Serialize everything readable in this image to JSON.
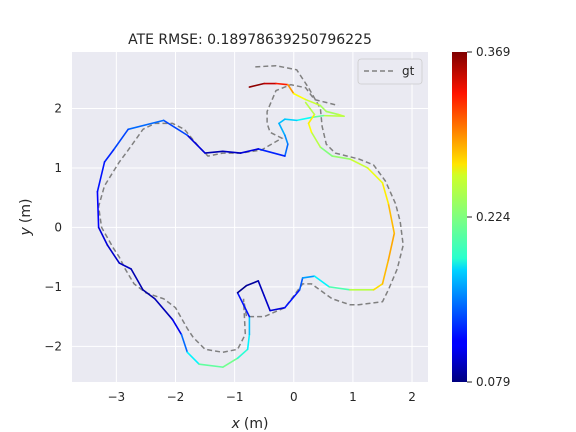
{
  "chart_data": {
    "type": "line",
    "title": "ATE RMSE: 0.18978639250796225",
    "xlabel_var": "x",
    "xlabel_unit": "(m)",
    "ylabel_var": "y",
    "ylabel_unit": "(m)",
    "xlim": [
      -3.75,
      2.27
    ],
    "ylim": [
      -2.6,
      2.95
    ],
    "xticks": [
      -3,
      -2,
      -1,
      0,
      1,
      2
    ],
    "yticks": [
      -2,
      -1,
      0,
      1,
      2
    ],
    "grid": true,
    "legend": {
      "position": "top-right",
      "entries": [
        "gt"
      ]
    },
    "colorbar": {
      "min": 0.079,
      "max": 0.369,
      "ticks": [
        "0.369",
        "0.224",
        "0.079"
      ],
      "colormap": "jet"
    },
    "gt": {
      "name": "gt",
      "style": "dashed",
      "color": "#808080",
      "points": [
        [
          -0.65,
          2.7
        ],
        [
          -0.3,
          2.72
        ],
        [
          0.05,
          2.65
        ],
        [
          0.25,
          2.35
        ],
        [
          0.45,
          2.0
        ],
        [
          0.48,
          1.7
        ],
        [
          0.55,
          1.4
        ],
        [
          0.7,
          1.25
        ],
        [
          1.1,
          1.15
        ],
        [
          1.35,
          1.05
        ],
        [
          1.55,
          0.78
        ],
        [
          1.72,
          0.4
        ],
        [
          1.8,
          0.1
        ],
        [
          1.85,
          -0.3
        ],
        [
          1.75,
          -0.7
        ],
        [
          1.6,
          -1.05
        ],
        [
          1.5,
          -1.25
        ],
        [
          1.1,
          -1.3
        ],
        [
          0.95,
          -1.3
        ],
        [
          0.65,
          -1.2
        ],
        [
          0.3,
          -0.95
        ],
        [
          0.15,
          -0.95
        ],
        [
          -0.15,
          -1.35
        ],
        [
          -0.5,
          -1.5
        ],
        [
          -0.8,
          -1.5
        ],
        [
          -0.85,
          -1.2
        ],
        [
          -0.82,
          -1.8
        ],
        [
          -0.95,
          -2.05
        ],
        [
          -1.2,
          -2.1
        ],
        [
          -1.5,
          -2.05
        ],
        [
          -1.7,
          -1.85
        ],
        [
          -1.8,
          -1.7
        ],
        [
          -2.0,
          -1.35
        ],
        [
          -2.2,
          -1.2
        ],
        [
          -2.5,
          -1.1
        ],
        [
          -2.7,
          -0.95
        ],
        [
          -2.85,
          -0.7
        ],
        [
          -2.95,
          -0.5
        ],
        [
          -3.05,
          -0.35
        ],
        [
          -3.25,
          0.0
        ],
        [
          -3.3,
          0.35
        ],
        [
          -3.2,
          0.7
        ],
        [
          -2.95,
          1.1
        ],
        [
          -2.8,
          1.3
        ],
        [
          -2.55,
          1.65
        ],
        [
          -2.35,
          1.75
        ],
        [
          -2.05,
          1.75
        ],
        [
          -1.85,
          1.65
        ],
        [
          -1.6,
          1.35
        ],
        [
          -1.45,
          1.2
        ],
        [
          -1.2,
          1.25
        ],
        [
          -0.9,
          1.25
        ],
        [
          -0.55,
          1.3
        ],
        [
          -0.2,
          1.5
        ],
        [
          -0.4,
          1.6
        ],
        [
          -0.45,
          1.75
        ],
        [
          -0.45,
          1.95
        ],
        [
          -0.3,
          2.3
        ],
        [
          -0.05,
          2.4
        ],
        [
          0.2,
          2.35
        ],
        [
          0.35,
          2.15
        ],
        [
          0.55,
          2.1
        ],
        [
          0.75,
          2.05
        ]
      ]
    },
    "est": {
      "points": [
        [
          -0.75,
          2.36
        ],
        [
          -0.5,
          2.42
        ],
        [
          -0.3,
          2.42
        ],
        [
          -0.1,
          2.4
        ],
        [
          0.0,
          2.25
        ],
        [
          0.2,
          2.15
        ],
        [
          0.45,
          2.05
        ],
        [
          0.55,
          1.95
        ],
        [
          0.75,
          1.9
        ],
        [
          0.85,
          1.87
        ],
        [
          0.5,
          1.88
        ],
        [
          0.3,
          1.85
        ],
        [
          0.05,
          1.8
        ],
        [
          -0.15,
          1.82
        ],
        [
          -0.25,
          1.75
        ],
        [
          -0.15,
          1.55
        ],
        [
          -0.1,
          1.4
        ],
        [
          -0.15,
          1.2
        ],
        [
          -0.6,
          1.32
        ],
        [
          -0.9,
          1.25
        ],
        [
          -1.2,
          1.28
        ],
        [
          -1.5,
          1.25
        ],
        [
          -1.8,
          1.55
        ],
        [
          -2.2,
          1.8
        ],
        [
          -2.8,
          1.65
        ],
        [
          -3.05,
          1.3
        ],
        [
          -3.2,
          1.1
        ],
        [
          -3.32,
          0.6
        ],
        [
          -3.3,
          0.0
        ],
        [
          -3.15,
          -0.3
        ],
        [
          -2.95,
          -0.6
        ],
        [
          -2.75,
          -0.7
        ],
        [
          -2.55,
          -1.05
        ],
        [
          -2.35,
          -1.2
        ],
        [
          -2.05,
          -1.55
        ],
        [
          -1.9,
          -1.8
        ],
        [
          -1.8,
          -2.1
        ],
        [
          -1.6,
          -2.3
        ],
        [
          -1.2,
          -2.35
        ],
        [
          -0.95,
          -2.2
        ],
        [
          -0.78,
          -2.05
        ],
        [
          -0.75,
          -1.8
        ],
        [
          -0.75,
          -1.5
        ],
        [
          -0.95,
          -1.1
        ],
        [
          -0.8,
          -0.98
        ],
        [
          -0.6,
          -0.9
        ],
        [
          -0.5,
          -1.15
        ],
        [
          -0.4,
          -1.4
        ],
        [
          -0.15,
          -1.35
        ],
        [
          0.1,
          -1.05
        ],
        [
          0.15,
          -0.85
        ],
        [
          0.35,
          -0.82
        ],
        [
          0.6,
          -1.0
        ],
        [
          0.95,
          -1.05
        ],
        [
          1.35,
          -1.05
        ],
        [
          1.5,
          -0.95
        ],
        [
          1.6,
          -0.55
        ],
        [
          1.7,
          -0.1
        ],
        [
          1.6,
          0.4
        ],
        [
          1.5,
          0.75
        ],
        [
          1.25,
          1.0
        ],
        [
          0.95,
          1.15
        ],
        [
          0.65,
          1.2
        ],
        [
          0.45,
          1.35
        ],
        [
          0.3,
          1.6
        ],
        [
          0.25,
          1.75
        ],
        [
          0.35,
          1.9
        ],
        [
          0.2,
          2.1
        ]
      ],
      "error": [
        0.369,
        0.36,
        0.34,
        0.31,
        0.27,
        0.25,
        0.24,
        0.23,
        0.24,
        0.25,
        0.23,
        0.2,
        0.18,
        0.17,
        0.17,
        0.16,
        0.15,
        0.14,
        0.11,
        0.1,
        0.095,
        0.09,
        0.12,
        0.15,
        0.14,
        0.13,
        0.12,
        0.12,
        0.11,
        0.1,
        0.1,
        0.095,
        0.09,
        0.09,
        0.1,
        0.12,
        0.17,
        0.2,
        0.23,
        0.21,
        0.19,
        0.18,
        0.16,
        0.08,
        0.085,
        0.09,
        0.1,
        0.1,
        0.11,
        0.13,
        0.15,
        0.17,
        0.2,
        0.22,
        0.26,
        0.28,
        0.28,
        0.29,
        0.27,
        0.26,
        0.25,
        0.24,
        0.22,
        0.23,
        0.25,
        0.27,
        0.26,
        0.22
      ]
    }
  }
}
